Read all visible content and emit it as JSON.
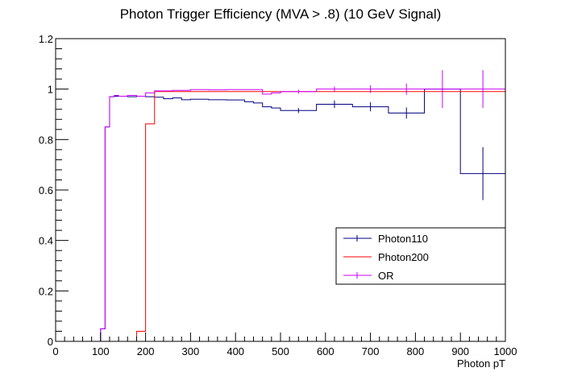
{
  "chart_data": {
    "type": "line",
    "title": "Photon Trigger Efficiency (MVA > .8) (10 GeV Signal)",
    "xlabel": "Photon pT",
    "ylabel": "",
    "xlim": [
      0,
      1000
    ],
    "ylim": [
      0,
      1.2
    ],
    "x_ticks": [
      "0",
      "100",
      "200",
      "300",
      "400",
      "500",
      "600",
      "700",
      "800",
      "900",
      "1000"
    ],
    "y_ticks": [
      "0",
      "0.2",
      "0.4",
      "0.6",
      "0.8",
      "1",
      "1.2"
    ],
    "grid": false,
    "legend_position": "right-middle",
    "series": [
      {
        "name": "Photon110",
        "color": "#000080",
        "bins": [
          {
            "x0": 0,
            "x1": 100,
            "y": 0
          },
          {
            "x0": 100,
            "x1": 110,
            "y": 0.05
          },
          {
            "x0": 110,
            "x1": 120,
            "y": 0.85
          },
          {
            "x0": 120,
            "x1": 130,
            "y": 0.97
          },
          {
            "x0": 130,
            "x1": 160,
            "y": 0.972
          },
          {
            "x0": 160,
            "x1": 180,
            "y": 0.97
          },
          {
            "x0": 180,
            "x1": 200,
            "y": 0.972
          },
          {
            "x0": 200,
            "x1": 220,
            "y": 0.97
          },
          {
            "x0": 220,
            "x1": 240,
            "y": 0.968
          },
          {
            "x0": 240,
            "x1": 260,
            "y": 0.962
          },
          {
            "x0": 260,
            "x1": 280,
            "y": 0.965
          },
          {
            "x0": 280,
            "x1": 300,
            "y": 0.958
          },
          {
            "x0": 300,
            "x1": 340,
            "y": 0.96
          },
          {
            "x0": 340,
            "x1": 380,
            "y": 0.958
          },
          {
            "x0": 380,
            "x1": 420,
            "y": 0.957
          },
          {
            "x0": 420,
            "x1": 440,
            "y": 0.95
          },
          {
            "x0": 440,
            "x1": 460,
            "y": 0.945
          },
          {
            "x0": 460,
            "x1": 480,
            "y": 0.93
          },
          {
            "x0": 480,
            "x1": 500,
            "y": 0.925
          },
          {
            "x0": 500,
            "x1": 580,
            "y": 0.915
          },
          {
            "x0": 580,
            "x1": 660,
            "y": 0.94
          },
          {
            "x0": 660,
            "x1": 740,
            "y": 0.93
          },
          {
            "x0": 740,
            "x1": 820,
            "y": 0.905
          },
          {
            "x0": 820,
            "x1": 900,
            "y": 1.0
          },
          {
            "x0": 900,
            "x1": 1000,
            "y": 0.665
          }
        ],
        "error_bars": [
          {
            "x": 540,
            "y": 0.915,
            "err": 0.01
          },
          {
            "x": 620,
            "y": 0.94,
            "err": 0.015
          },
          {
            "x": 700,
            "y": 0.93,
            "err": 0.018
          },
          {
            "x": 780,
            "y": 0.905,
            "err": 0.022
          },
          {
            "x": 950,
            "y": 0.665,
            "err": 0.105
          }
        ]
      },
      {
        "name": "Photon200",
        "color": "#ff0000",
        "bins": [
          {
            "x0": 0,
            "x1": 180,
            "y": 0
          },
          {
            "x0": 180,
            "x1": 200,
            "y": 0.04
          },
          {
            "x0": 200,
            "x1": 220,
            "y": 0.862
          },
          {
            "x0": 220,
            "x1": 1000,
            "y": 0.99
          }
        ],
        "error_bars": []
      },
      {
        "name": "OR",
        "color": "#cc00ff",
        "bins": [
          {
            "x0": 0,
            "x1": 100,
            "y": 0
          },
          {
            "x0": 100,
            "x1": 110,
            "y": 0.05
          },
          {
            "x0": 110,
            "x1": 120,
            "y": 0.85
          },
          {
            "x0": 120,
            "x1": 130,
            "y": 0.97
          },
          {
            "x0": 130,
            "x1": 140,
            "y": 0.975
          },
          {
            "x0": 140,
            "x1": 160,
            "y": 0.972
          },
          {
            "x0": 160,
            "x1": 180,
            "y": 0.975
          },
          {
            "x0": 180,
            "x1": 200,
            "y": 0.972
          },
          {
            "x0": 200,
            "x1": 220,
            "y": 0.985
          },
          {
            "x0": 220,
            "x1": 260,
            "y": 0.993
          },
          {
            "x0": 260,
            "x1": 300,
            "y": 0.995
          },
          {
            "x0": 300,
            "x1": 340,
            "y": 0.998
          },
          {
            "x0": 340,
            "x1": 380,
            "y": 0.997
          },
          {
            "x0": 380,
            "x1": 460,
            "y": 0.998
          },
          {
            "x0": 460,
            "x1": 480,
            "y": 0.98
          },
          {
            "x0": 480,
            "x1": 500,
            "y": 0.985
          },
          {
            "x0": 500,
            "x1": 580,
            "y": 0.99
          },
          {
            "x0": 580,
            "x1": 1000,
            "y": 1.0
          }
        ],
        "error_bars": [
          {
            "x": 540,
            "y": 0.99,
            "err": 0.008
          },
          {
            "x": 620,
            "y": 1.0,
            "err": 0.01
          },
          {
            "x": 700,
            "y": 1.0,
            "err": 0.015
          },
          {
            "x": 780,
            "y": 1.0,
            "err": 0.022
          },
          {
            "x": 860,
            "y": 1.0,
            "err": 0.075
          },
          {
            "x": 950,
            "y": 1.0,
            "err": 0.075
          }
        ]
      }
    ]
  }
}
